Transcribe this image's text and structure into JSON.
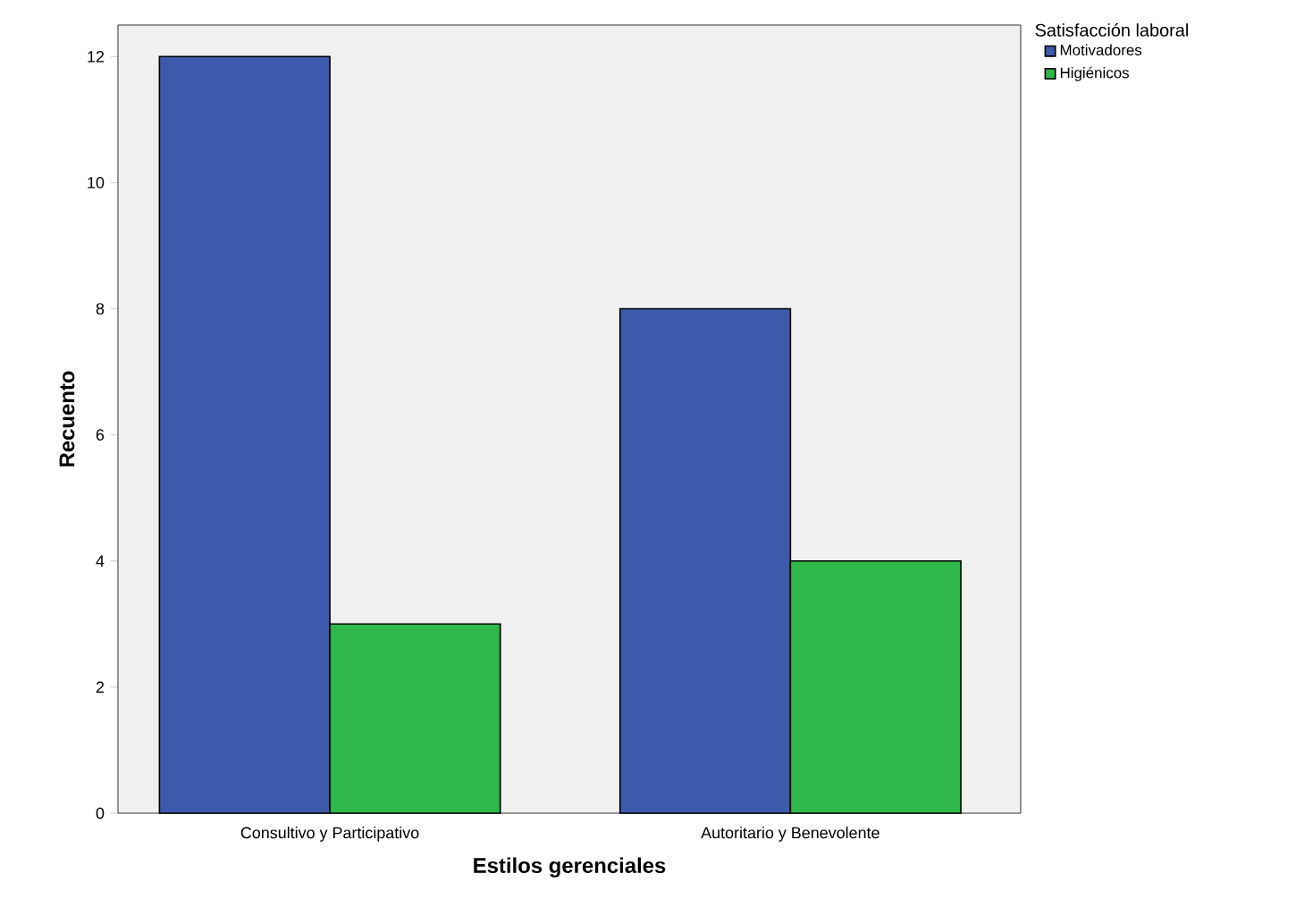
{
  "chart_data": {
    "type": "bar",
    "xlabel": "Estilos gerenciales",
    "ylabel": "Recuento",
    "legend_title": "Satisfacción laboral",
    "legend": "top right",
    "categories": [
      "Consultivo y Participativo",
      "Autoritario y Benevolente"
    ],
    "series": [
      {
        "name": "Motivadores",
        "color": "#3d5aad",
        "values": [
          12,
          8
        ]
      },
      {
        "name": "Higiénicos",
        "color": "#2fb84a",
        "values": [
          3,
          4
        ]
      }
    ],
    "ylim": [
      0,
      12.5
    ],
    "yticks": [
      0,
      2,
      4,
      6,
      8,
      10,
      12
    ],
    "grid": false
  }
}
